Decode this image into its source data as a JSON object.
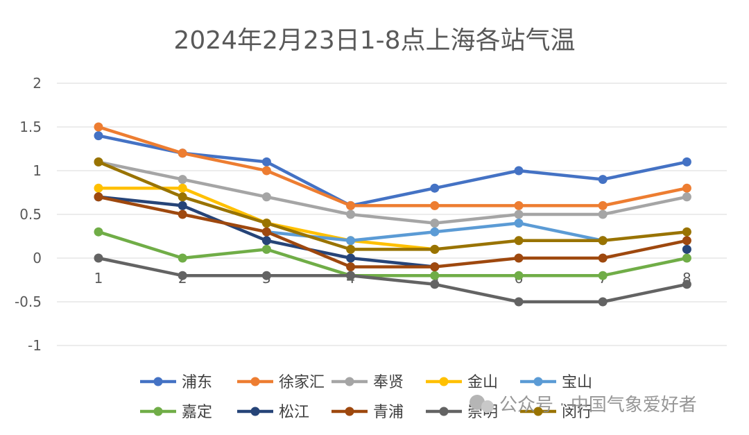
{
  "chart_data": {
    "type": "line",
    "title": "2024年2月23日1-8点上海各站气温",
    "x": [
      "1",
      "2",
      "3",
      "4",
      "5",
      "6",
      "7",
      "8"
    ],
    "ylim": [
      -1,
      2
    ],
    "yticks": [
      2,
      1.5,
      1,
      0.5,
      0,
      -0.5,
      -1
    ],
    "ytick_labels": [
      "2",
      "1.5",
      "1",
      "0.5",
      "0",
      "-0.5",
      "-1"
    ],
    "grid": true,
    "legend_position": "bottom",
    "series": [
      {
        "name": "浦东",
        "color": "#4472C4",
        "values": [
          1.4,
          1.2,
          1.1,
          0.6,
          0.8,
          1.0,
          0.9,
          1.1
        ]
      },
      {
        "name": "徐家汇",
        "color": "#ED7D31",
        "values": [
          1.5,
          1.2,
          1.0,
          0.6,
          0.6,
          0.6,
          0.6,
          0.8
        ]
      },
      {
        "name": "奉贤",
        "color": "#A5A5A5",
        "values": [
          1.1,
          0.9,
          0.7,
          0.5,
          0.4,
          0.5,
          0.5,
          0.7
        ]
      },
      {
        "name": "金山",
        "color": "#FFC000",
        "values": [
          0.8,
          0.8,
          0.4,
          0.2,
          0.1,
          null,
          null,
          null
        ]
      },
      {
        "name": "宝山",
        "color": "#5B9BD5",
        "values": [
          null,
          null,
          0.3,
          0.2,
          0.3,
          0.4,
          0.2,
          null
        ]
      },
      {
        "name": "嘉定",
        "color": "#70AD47",
        "values": [
          0.3,
          0.0,
          0.1,
          -0.2,
          -0.2,
          -0.2,
          -0.2,
          0.0
        ]
      },
      {
        "name": "松江",
        "color": "#264478",
        "values": [
          0.7,
          0.6,
          0.2,
          0.0,
          -0.1,
          null,
          null,
          0.1
        ]
      },
      {
        "name": "青浦",
        "color": "#9E480E",
        "values": [
          0.7,
          0.5,
          0.3,
          -0.1,
          -0.1,
          0.0,
          0.0,
          0.2
        ]
      },
      {
        "name": "崇明",
        "color": "#636363",
        "values": [
          0.0,
          -0.2,
          -0.2,
          -0.2,
          -0.3,
          -0.5,
          -0.5,
          -0.3
        ]
      },
      {
        "name": "闵行",
        "color": "#997300",
        "values": [
          1.1,
          0.7,
          0.4,
          0.1,
          0.1,
          0.2,
          0.2,
          0.3
        ]
      }
    ]
  },
  "watermark": {
    "text": "公众号 · 中国气象爱好者"
  }
}
